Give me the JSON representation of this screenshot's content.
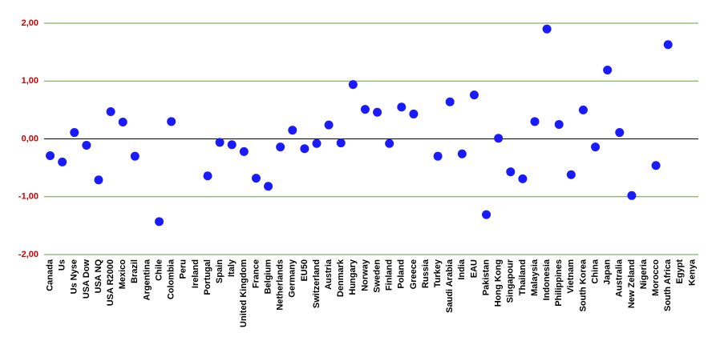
{
  "chart_data": {
    "type": "scatter",
    "categories": [
      "Canada",
      "Us",
      "Us Nyse",
      "USA Dow",
      "USA NQ",
      "USA R2000",
      "Mexico",
      "Brazil",
      "Argentina",
      "Chile",
      "Colombia",
      "Peru",
      "Ireland",
      "Portugal",
      "Spain",
      "Italy",
      "United Kingdom",
      "France",
      "Belgium",
      "Netherlands",
      "Germany",
      "EU50",
      "Switzerland",
      "Austria",
      "Denmark",
      "Hungary",
      "Norway",
      "Sweden",
      "Finland",
      "Poland",
      "Greece",
      "Russia",
      "Turkey",
      "Saudi Arabia",
      "India",
      "EAU",
      "Pakistan",
      "Hong Kong",
      "Singapour",
      "Thailand",
      "Malaysia",
      "Indonesia",
      "Philippines",
      "Vietnam",
      "South Korea",
      "China",
      "Japan",
      "Australia",
      "New Zeland",
      "Nigeria",
      "Morocco",
      "South Africa",
      "Egypt",
      "Kenya"
    ],
    "values": [
      -0.29,
      -0.4,
      0.11,
      -0.11,
      -0.71,
      0.47,
      0.29,
      -0.3,
      null,
      -1.43,
      0.3,
      null,
      null,
      -0.64,
      -0.06,
      -0.1,
      -0.22,
      -0.68,
      -0.82,
      -0.14,
      0.15,
      -0.17,
      -0.08,
      0.24,
      -0.07,
      0.94,
      0.51,
      0.46,
      -0.08,
      0.55,
      0.43,
      null,
      -0.3,
      0.64,
      -0.26,
      0.76,
      -1.31,
      0.01,
      -0.57,
      -0.69,
      0.3,
      1.9,
      0.25,
      -0.62,
      0.5,
      -0.14,
      1.19,
      0.11,
      -0.98,
      null,
      -0.46,
      1.63,
      null,
      null
    ],
    "color": "#1a1aff",
    "ylim": [
      -2,
      2
    ],
    "yticks": [
      {
        "value": -2,
        "label": "-2,00"
      },
      {
        "value": -1,
        "label": "-1,00"
      },
      {
        "value": 0,
        "label": "0,00"
      },
      {
        "value": 1,
        "label": "1,00"
      },
      {
        "value": 2,
        "label": "2,00"
      }
    ],
    "grid": true
  }
}
